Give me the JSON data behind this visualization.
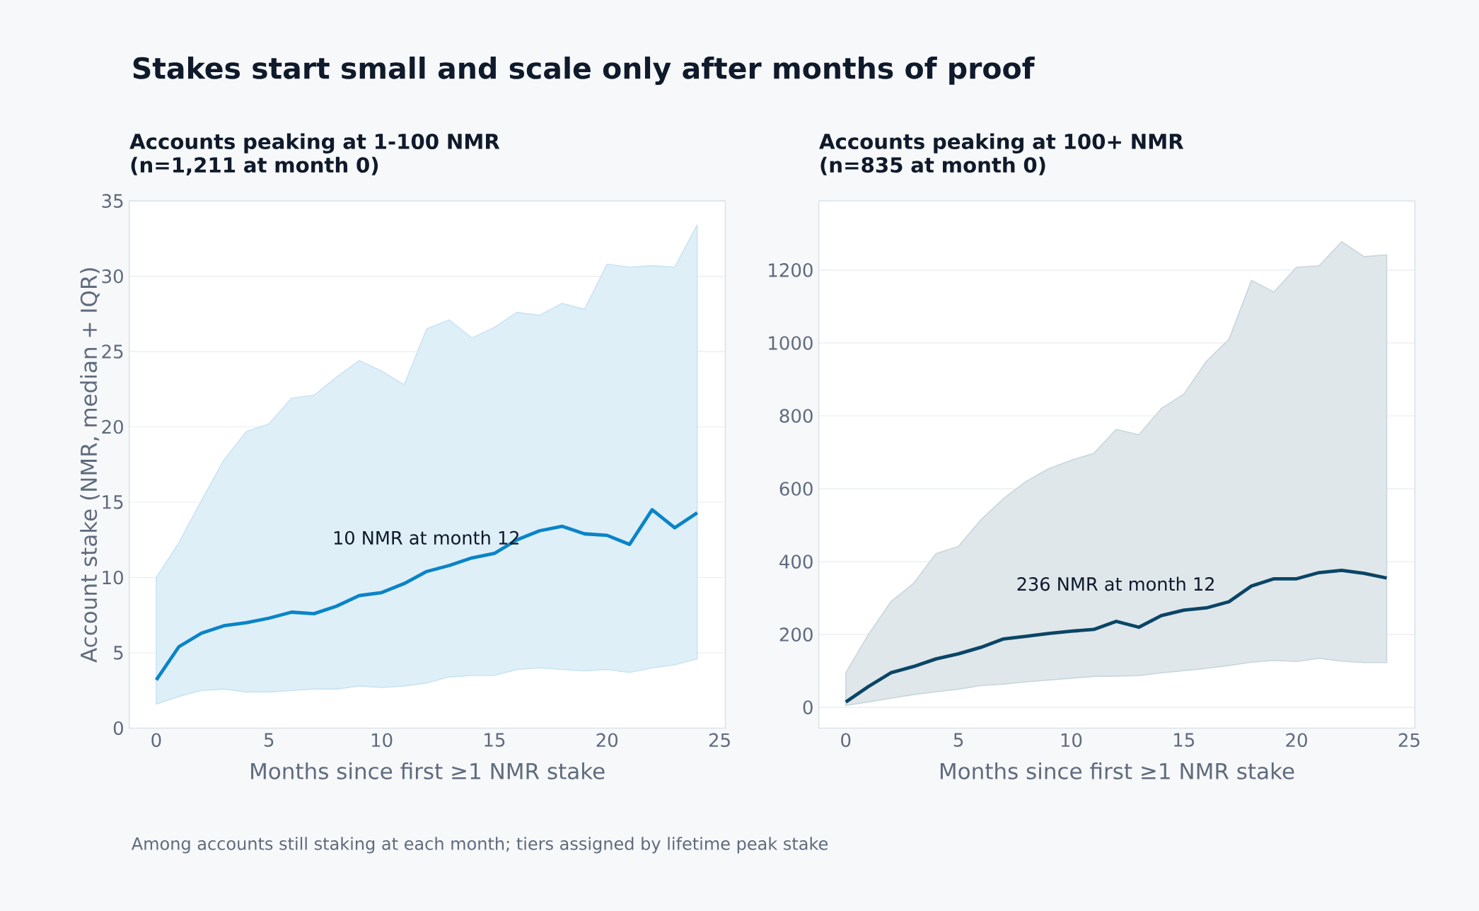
{
  "chart_data": [
    {
      "type": "line",
      "title": "Stakes start small and scale only after months of proof",
      "subtitle": "Accounts peaking at 1-100 NMR (n=1,211 at month 0)",
      "xlabel": "Months since first ≥1 NMR stake",
      "ylabel": "Account stake (NMR, median + IQR)",
      "annotations": [
        "10 NMR at month 12",
        "Among accounts still staking at each month; tiers assigned by lifetime peak stake"
      ],
      "x": [
        0,
        1,
        2,
        3,
        4,
        5,
        6,
        7,
        8,
        9,
        10,
        11,
        12,
        13,
        14,
        15,
        16,
        17,
        18,
        19,
        20,
        21,
        22,
        23,
        24
      ],
      "xlim": [
        -1.2,
        25.25
      ],
      "xticks": [
        0,
        5,
        10,
        15,
        20,
        25
      ],
      "ylim": [
        0,
        35
      ],
      "yticks": [
        0,
        5,
        10,
        15,
        20,
        25,
        30,
        35
      ],
      "grid": "y",
      "series": [
        {
          "color": "#0a84c8",
          "values": [
            3.2,
            5.4,
            6.3,
            6.8,
            7.0,
            7.3,
            7.7,
            7.6,
            8.1,
            8.8,
            9.0,
            9.6,
            10.4,
            10.8,
            11.3,
            11.6,
            12.5,
            13.1,
            13.4,
            12.9,
            12.8,
            12.2,
            14.5,
            13.3,
            14.3
          ],
          "upper": [
            10,
            12.3,
            15.1,
            17.8,
            19.7,
            20.2,
            21.9,
            22.1,
            23.3,
            24.4,
            23.7,
            22.8,
            26.5,
            27.1,
            25.9,
            26.6,
            27.6,
            27.4,
            28.2,
            27.8,
            30.8,
            30.6,
            30.7,
            30.6,
            33.4
          ],
          "lower": [
            1.6,
            2.1,
            2.5,
            2.6,
            2.4,
            2.4,
            2.5,
            2.6,
            2.6,
            2.8,
            2.7,
            2.8,
            3.0,
            3.4,
            3.5,
            3.5,
            3.9,
            4.0,
            3.9,
            3.8,
            3.9,
            3.7,
            4.0,
            4.2,
            4.6
          ]
        }
      ]
    },
    {
      "type": "line",
      "subtitle": "Accounts peaking at 100+ NMR (n=835 at month 0)",
      "xlabel": "Months since first ≥1 NMR stake",
      "annotations": [
        "236 NMR at month 12"
      ],
      "x": [
        0,
        1,
        2,
        3,
        4,
        5,
        6,
        7,
        8,
        9,
        10,
        11,
        12,
        13,
        14,
        15,
        16,
        17,
        18,
        19,
        20,
        21,
        22,
        23,
        24
      ],
      "xlim": [
        -1.2,
        25.25
      ],
      "xticks": [
        0,
        5,
        10,
        15,
        20,
        25
      ],
      "ylim": [
        -57,
        1390
      ],
      "yticks": [
        0,
        200,
        400,
        600,
        800,
        1000,
        1200
      ],
      "grid": "y",
      "series": [
        {
          "color": "#0b4566",
          "values": [
            15,
            57,
            95,
            112,
            133,
            147,
            165,
            188,
            195,
            203,
            209,
            214,
            236,
            220,
            252,
            267,
            273,
            290,
            333,
            353,
            353,
            370,
            376,
            368,
            355
          ],
          "upper": [
            95,
            200,
            290,
            340,
            422,
            442,
            515,
            573,
            620,
            655,
            678,
            697,
            763,
            748,
            820,
            860,
            950,
            1010,
            1172,
            1140,
            1208,
            1212,
            1278,
            1237,
            1242
          ],
          "lower": [
            5,
            15,
            25,
            35,
            43,
            50,
            60,
            64,
            70,
            75,
            80,
            85,
            86,
            87,
            95,
            101,
            107,
            115,
            124,
            129,
            126,
            135,
            127,
            123,
            123
          ]
        }
      ]
    }
  ]
}
